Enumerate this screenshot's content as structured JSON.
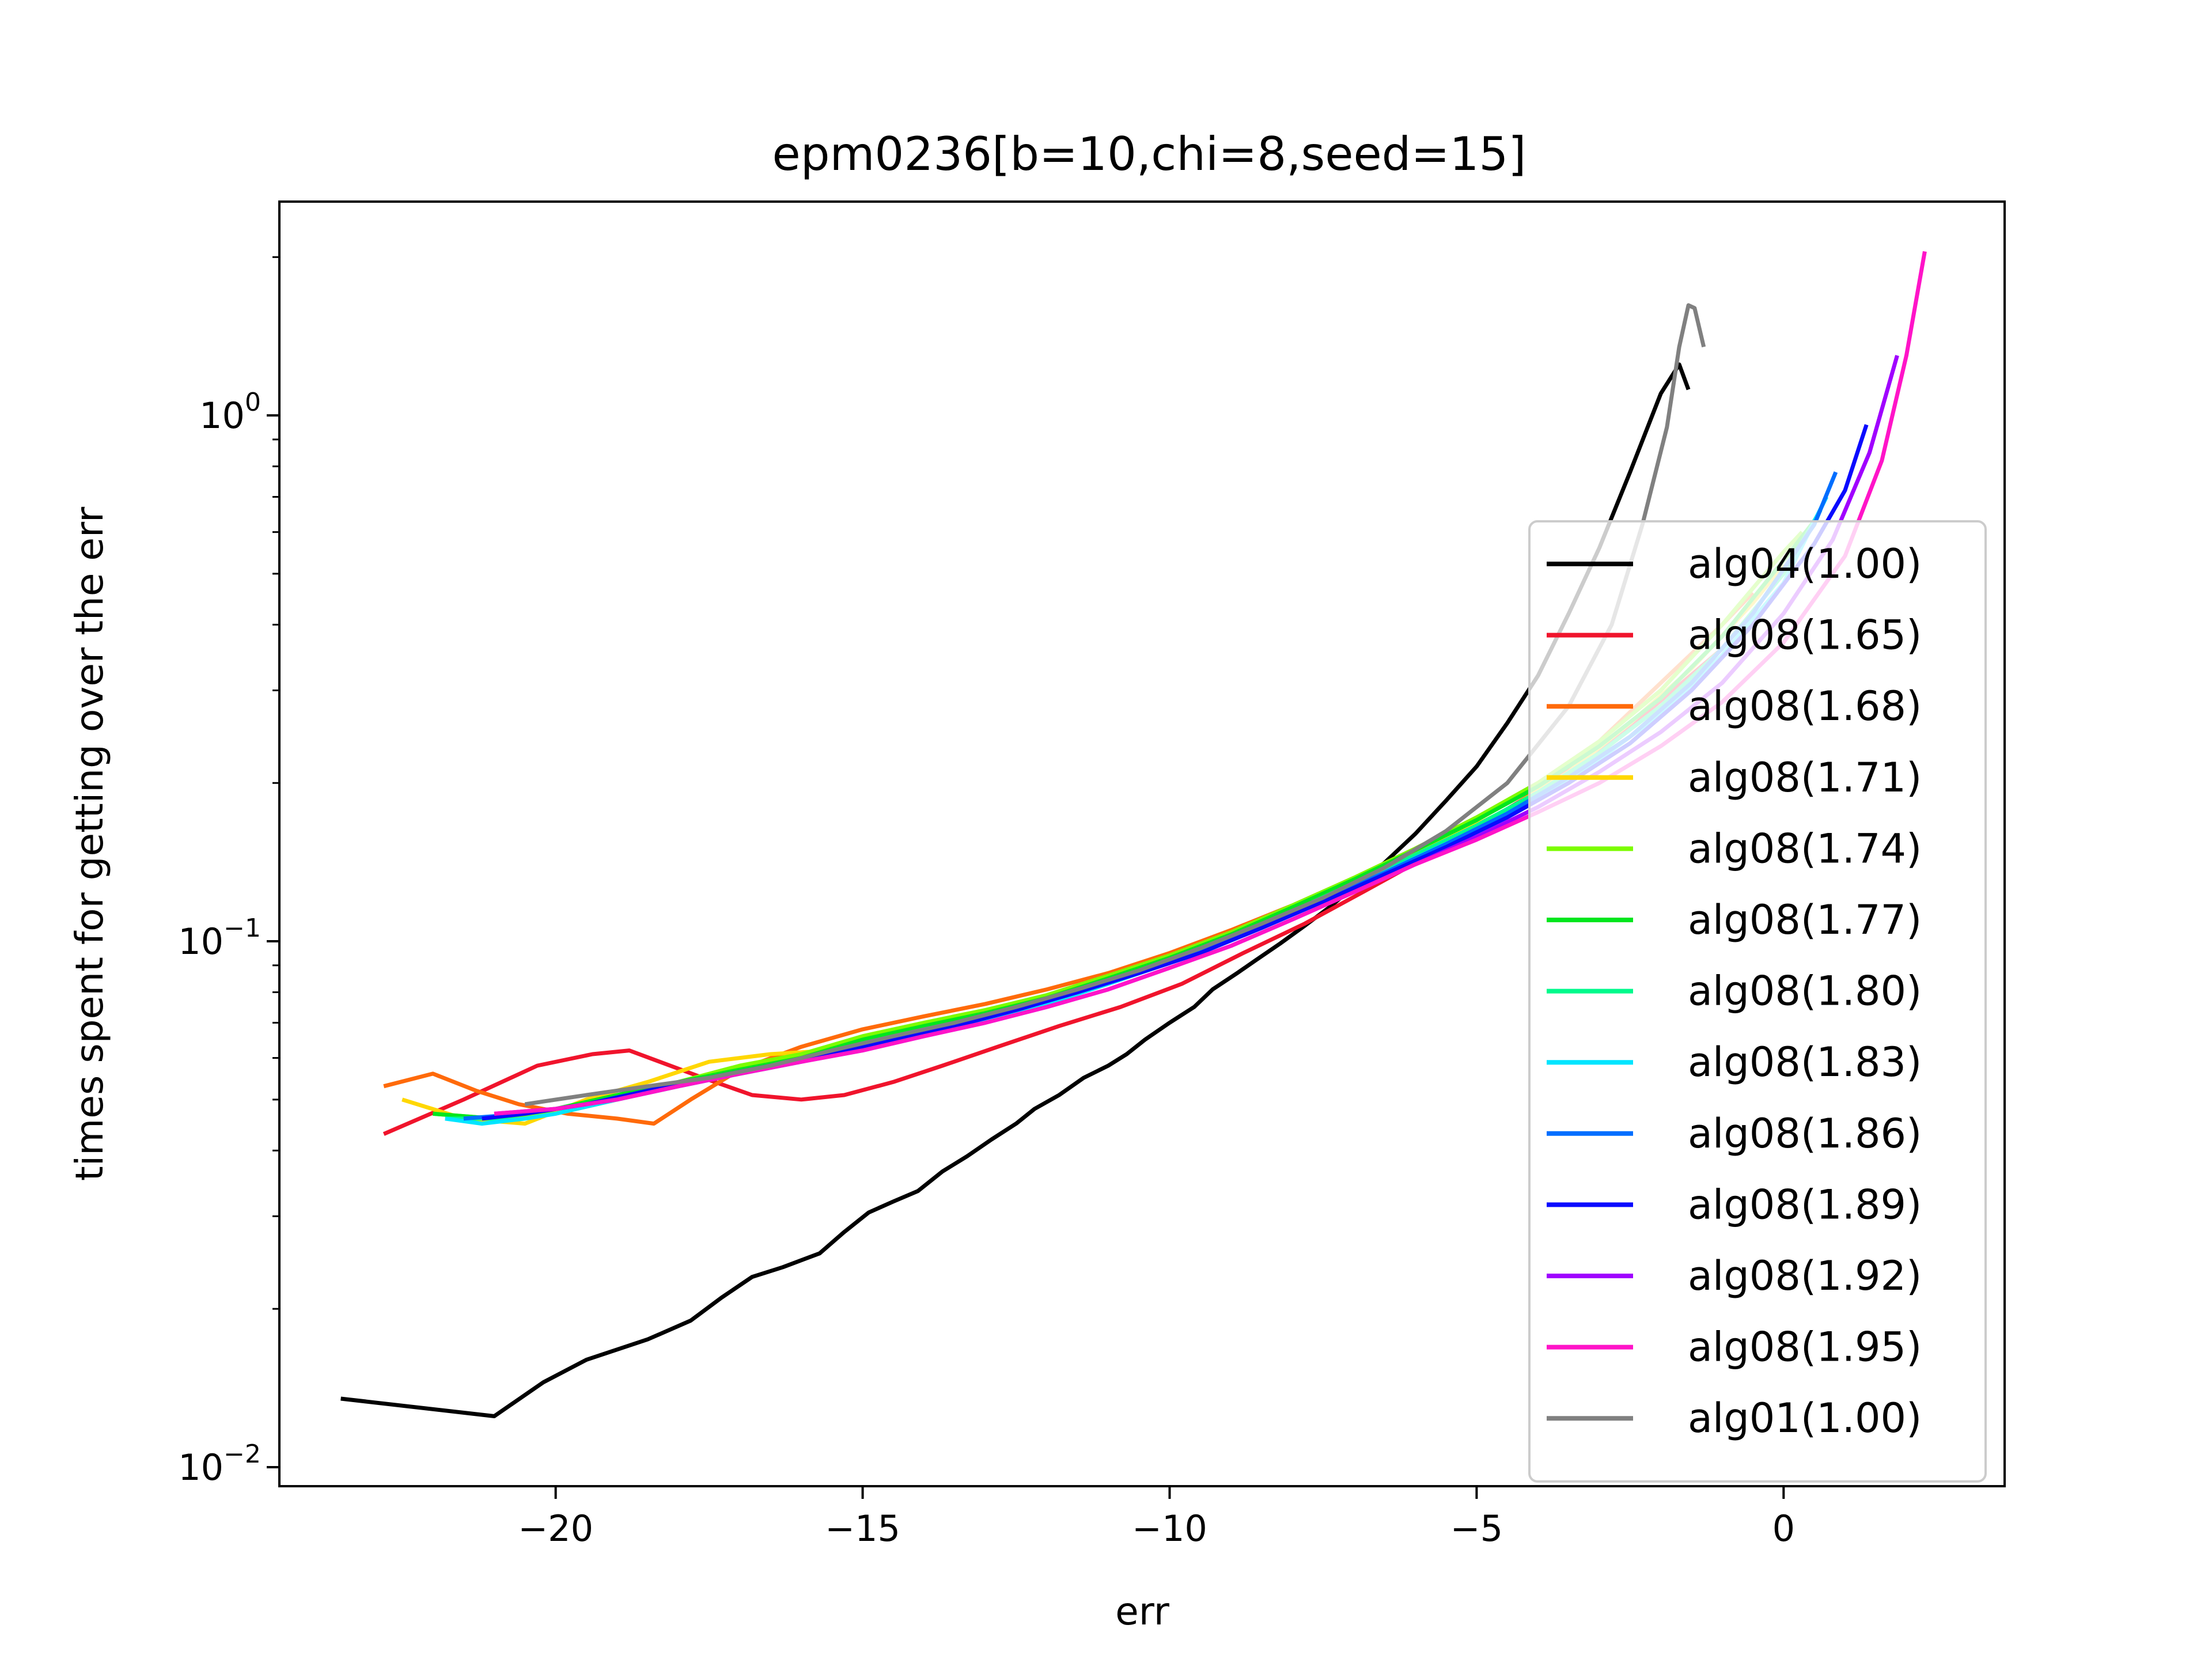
{
  "chart_data": {
    "type": "line",
    "title": "epm0236[b=10,chi=8,seed=15]",
    "xlabel": "err",
    "ylabel": "times spent for getting over the err",
    "xlim": [
      -24.5,
      3.6
    ],
    "ylim": [
      0.0092,
      2.55
    ],
    "yscale": "log",
    "x_ticks": [
      -20,
      -15,
      -10,
      -5,
      0
    ],
    "x_tick_labels": [
      "−20",
      "−15",
      "−10",
      "−5",
      "0"
    ],
    "y_ticks": [
      0.01,
      0.1,
      1
    ],
    "y_tick_labels": [
      {
        "base": "10",
        "exp": "−2"
      },
      {
        "base": "10",
        "exp": "−1"
      },
      {
        "base": "10",
        "exp": "0"
      }
    ],
    "grid": false,
    "legend_position": "right",
    "series": [
      {
        "name": "alg04(1.00)",
        "color": "#000000",
        "x": [
          -23.5,
          -21.0,
          -20.2,
          -19.5,
          -18.5,
          -17.8,
          -17.3,
          -16.8,
          -16.3,
          -15.7,
          -15.3,
          -14.9,
          -14.5,
          -14.1,
          -13.7,
          -13.3,
          -12.9,
          -12.5,
          -12.2,
          -11.8,
          -11.4,
          -11.0,
          -10.7,
          -10.4,
          -10.0,
          -9.6,
          -9.3,
          -8.9,
          -8.6,
          -8.2,
          -7.8,
          -7.4,
          -7.0,
          -6.5,
          -6.0,
          -5.5,
          -5.0,
          -4.5,
          -4.0,
          -3.5,
          -3.0,
          -2.5,
          -2.0,
          -1.7,
          -1.55
        ],
        "y": [
          0.0135,
          0.0125,
          0.0145,
          0.016,
          0.0175,
          0.019,
          0.021,
          0.023,
          0.024,
          0.0255,
          0.028,
          0.0305,
          0.032,
          0.0335,
          0.0365,
          0.039,
          0.042,
          0.045,
          0.048,
          0.051,
          0.055,
          0.058,
          0.061,
          0.065,
          0.07,
          0.075,
          0.081,
          0.087,
          0.092,
          0.099,
          0.107,
          0.116,
          0.127,
          0.141,
          0.16,
          0.185,
          0.215,
          0.26,
          0.32,
          0.42,
          0.56,
          0.78,
          1.1,
          1.25,
          1.12
        ]
      },
      {
        "name": "alg08(1.65)",
        "color": "#f0142c",
        "x": [
          -22.8,
          -21.5,
          -20.3,
          -19.4,
          -18.8,
          -17.6,
          -16.8,
          -16.0,
          -15.3,
          -14.5,
          -13.7,
          -12.8,
          -11.8,
          -10.8,
          -9.8,
          -8.8,
          -7.8,
          -6.8,
          -5.8,
          -4.8,
          -3.8,
          -2.8,
          -1.8,
          -1.0
        ],
        "y": [
          0.043,
          0.05,
          0.058,
          0.061,
          0.062,
          0.055,
          0.051,
          0.05,
          0.051,
          0.054,
          0.058,
          0.063,
          0.069,
          0.075,
          0.083,
          0.095,
          0.108,
          0.125,
          0.145,
          0.17,
          0.2,
          0.24,
          0.3,
          0.36
        ]
      },
      {
        "name": "alg08(1.68)",
        "color": "#ff6a0a",
        "x": [
          -22.8,
          -22.0,
          -21.3,
          -20.6,
          -19.8,
          -19.0,
          -18.4,
          -17.8,
          -17.0,
          -16.0,
          -15.0,
          -14.0,
          -13.0,
          -12.0,
          -11.0,
          -10.0,
          -9.0,
          -8.0,
          -7.0,
          -6.0,
          -5.0,
          -4.0,
          -3.0,
          -2.0,
          -1.0,
          -0.5
        ],
        "y": [
          0.053,
          0.056,
          0.052,
          0.049,
          0.047,
          0.046,
          0.045,
          0.05,
          0.057,
          0.063,
          0.068,
          0.072,
          0.076,
          0.081,
          0.087,
          0.095,
          0.105,
          0.117,
          0.132,
          0.15,
          0.172,
          0.2,
          0.24,
          0.31,
          0.4,
          0.46
        ]
      },
      {
        "name": "alg08(1.71)",
        "color": "#ffd700",
        "x": [
          -22.5,
          -21.5,
          -20.5,
          -19.5,
          -18.5,
          -17.5,
          -16.5,
          -15.5,
          -14.5,
          -13.5,
          -12.5,
          -11.5,
          -10.5,
          -9.5,
          -8.5,
          -7.5,
          -6.5,
          -5.5,
          -4.5,
          -3.5,
          -2.5,
          -1.5,
          -0.5,
          0.0
        ],
        "y": [
          0.05,
          0.046,
          0.045,
          0.05,
          0.054,
          0.059,
          0.061,
          0.062,
          0.067,
          0.072,
          0.076,
          0.082,
          0.089,
          0.098,
          0.109,
          0.122,
          0.138,
          0.156,
          0.178,
          0.21,
          0.26,
          0.33,
          0.44,
          0.52
        ]
      },
      {
        "name": "alg08(1.74)",
        "color": "#7cfc00",
        "x": [
          -22.0,
          -21.0,
          -20.0,
          -19.0,
          -18.0,
          -17.0,
          -16.0,
          -15.0,
          -14.0,
          -13.0,
          -12.0,
          -11.0,
          -10.0,
          -9.0,
          -8.0,
          -7.0,
          -6.0,
          -5.0,
          -4.0,
          -3.0,
          -2.0,
          -1.0,
          0.0,
          0.3
        ],
        "y": [
          0.047,
          0.046,
          0.047,
          0.05,
          0.054,
          0.058,
          0.061,
          0.066,
          0.07,
          0.074,
          0.079,
          0.086,
          0.094,
          0.104,
          0.117,
          0.132,
          0.15,
          0.172,
          0.2,
          0.24,
          0.3,
          0.4,
          0.55,
          0.6
        ]
      },
      {
        "name": "alg08(1.77)",
        "color": "#00e61e",
        "x": [
          -22.0,
          -21.0,
          -20.0,
          -19.0,
          -18.0,
          -17.0,
          -16.0,
          -15.0,
          -14.0,
          -13.0,
          -12.0,
          -11.0,
          -10.0,
          -9.0,
          -8.0,
          -7.0,
          -6.0,
          -5.0,
          -4.0,
          -3.0,
          -2.0,
          -1.0,
          0.0,
          0.5
        ],
        "y": [
          0.047,
          0.046,
          0.048,
          0.051,
          0.054,
          0.057,
          0.06,
          0.065,
          0.069,
          0.073,
          0.078,
          0.085,
          0.093,
          0.103,
          0.116,
          0.131,
          0.149,
          0.17,
          0.197,
          0.235,
          0.29,
          0.38,
          0.53,
          0.63
        ]
      },
      {
        "name": "alg08(1.80)",
        "color": "#00fa8c",
        "x": [
          -21.8,
          -21.0,
          -20.0,
          -19.0,
          -18.0,
          -17.0,
          -16.0,
          -15.0,
          -14.0,
          -13.0,
          -12.0,
          -11.0,
          -10.0,
          -9.0,
          -8.0,
          -7.0,
          -6.0,
          -5.0,
          -4.0,
          -3.0,
          -2.0,
          -1.0,
          0.0,
          0.6
        ],
        "y": [
          0.046,
          0.046,
          0.048,
          0.05,
          0.053,
          0.056,
          0.059,
          0.064,
          0.068,
          0.072,
          0.077,
          0.084,
          0.092,
          0.102,
          0.114,
          0.129,
          0.146,
          0.166,
          0.192,
          0.228,
          0.28,
          0.36,
          0.5,
          0.66
        ]
      },
      {
        "name": "alg08(1.83)",
        "color": "#00e5ff",
        "x": [
          -21.8,
          -21.2,
          -20.5,
          -20.0,
          -19.0,
          -18.0,
          -17.0,
          -16.0,
          -15.0,
          -14.0,
          -13.0,
          -12.0,
          -11.0,
          -10.0,
          -9.0,
          -8.0,
          -7.0,
          -6.0,
          -5.0,
          -4.0,
          -3.0,
          -2.0,
          -1.0,
          0.0,
          0.7
        ],
        "y": [
          0.046,
          0.045,
          0.046,
          0.047,
          0.05,
          0.053,
          0.056,
          0.059,
          0.063,
          0.067,
          0.071,
          0.076,
          0.083,
          0.091,
          0.101,
          0.113,
          0.127,
          0.144,
          0.163,
          0.188,
          0.222,
          0.27,
          0.35,
          0.48,
          0.7
        ]
      },
      {
        "name": "alg08(1.86)",
        "color": "#006eff",
        "x": [
          -21.5,
          -20.5,
          -19.5,
          -18.5,
          -17.5,
          -16.5,
          -15.5,
          -14.5,
          -13.5,
          -12.5,
          -11.5,
          -10.5,
          -9.5,
          -8.5,
          -7.5,
          -6.5,
          -5.5,
          -4.5,
          -3.5,
          -2.5,
          -1.5,
          -0.5,
          0.5,
          0.85
        ],
        "y": [
          0.046,
          0.047,
          0.049,
          0.052,
          0.055,
          0.058,
          0.061,
          0.065,
          0.069,
          0.074,
          0.08,
          0.087,
          0.096,
          0.107,
          0.12,
          0.135,
          0.153,
          0.175,
          0.205,
          0.245,
          0.31,
          0.42,
          0.62,
          0.78
        ]
      },
      {
        "name": "alg08(1.89)",
        "color": "#0a0aff",
        "x": [
          -21.2,
          -20.5,
          -19.5,
          -18.5,
          -17.5,
          -16.5,
          -15.5,
          -14.5,
          -13.5,
          -12.5,
          -11.5,
          -10.5,
          -9.5,
          -8.5,
          -7.5,
          -6.5,
          -5.5,
          -4.5,
          -3.5,
          -2.5,
          -1.5,
          -0.5,
          0.5,
          1.0,
          1.35
        ],
        "y": [
          0.046,
          0.047,
          0.049,
          0.052,
          0.055,
          0.058,
          0.061,
          0.065,
          0.069,
          0.074,
          0.08,
          0.087,
          0.095,
          0.106,
          0.119,
          0.134,
          0.151,
          0.172,
          0.2,
          0.238,
          0.3,
          0.4,
          0.57,
          0.72,
          0.96
        ]
      },
      {
        "name": "alg08(1.92)",
        "color": "#a000ff",
        "x": [
          -21.0,
          -20.0,
          -19.0,
          -18.0,
          -17.0,
          -16.0,
          -15.0,
          -14.0,
          -13.0,
          -12.0,
          -11.0,
          -10.0,
          -9.0,
          -8.0,
          -7.0,
          -6.0,
          -5.0,
          -4.0,
          -3.0,
          -2.0,
          -1.0,
          0.0,
          0.8,
          1.4,
          1.85
        ],
        "y": [
          0.047,
          0.048,
          0.05,
          0.053,
          0.056,
          0.059,
          0.062,
          0.066,
          0.07,
          0.075,
          0.081,
          0.089,
          0.098,
          0.11,
          0.124,
          0.14,
          0.158,
          0.18,
          0.21,
          0.25,
          0.31,
          0.42,
          0.58,
          0.85,
          1.3
        ]
      },
      {
        "name": "alg08(1.95)",
        "color": "#ff14c8",
        "x": [
          -21.0,
          -20.0,
          -19.0,
          -18.0,
          -17.0,
          -16.0,
          -15.0,
          -14.0,
          -13.0,
          -12.0,
          -11.0,
          -10.0,
          -9.0,
          -8.0,
          -7.0,
          -6.0,
          -5.0,
          -4.0,
          -3.0,
          -2.0,
          -1.0,
          0.0,
          1.0,
          1.6,
          2.0,
          2.3
        ],
        "y": [
          0.047,
          0.048,
          0.05,
          0.053,
          0.056,
          0.059,
          0.062,
          0.066,
          0.07,
          0.075,
          0.081,
          0.089,
          0.098,
          0.11,
          0.124,
          0.14,
          0.156,
          0.176,
          0.2,
          0.235,
          0.285,
          0.37,
          0.54,
          0.82,
          1.3,
          2.05
        ]
      },
      {
        "name": "alg01(1.00)",
        "color": "#808080",
        "x": [
          -20.5,
          -19.5,
          -18.5,
          -17.5,
          -16.5,
          -15.5,
          -14.5,
          -13.5,
          -12.5,
          -11.5,
          -10.5,
          -9.5,
          -8.5,
          -7.5,
          -6.5,
          -5.5,
          -4.5,
          -3.5,
          -2.8,
          -2.3,
          -1.9,
          -1.7,
          -1.55,
          -1.45,
          -1.3
        ],
        "y": [
          0.049,
          0.051,
          0.053,
          0.055,
          0.058,
          0.062,
          0.066,
          0.07,
          0.075,
          0.081,
          0.088,
          0.097,
          0.108,
          0.121,
          0.138,
          0.162,
          0.2,
          0.28,
          0.4,
          0.62,
          0.95,
          1.35,
          1.62,
          1.6,
          1.35
        ]
      }
    ]
  }
}
